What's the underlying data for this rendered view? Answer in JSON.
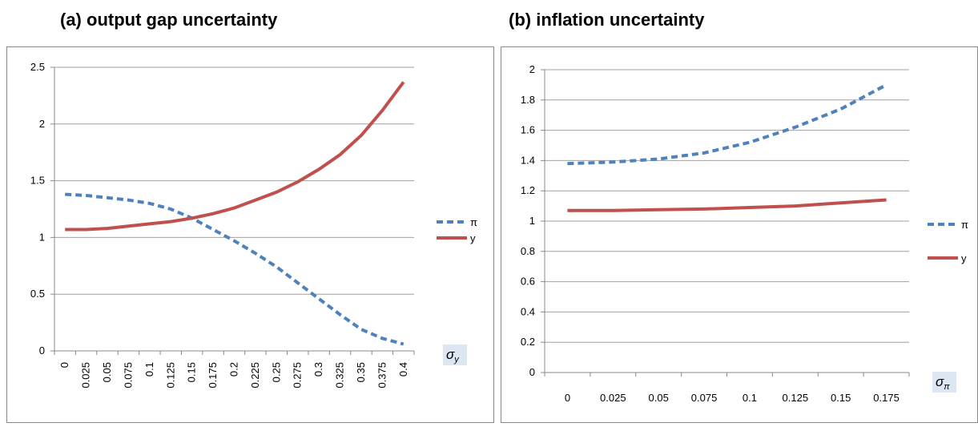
{
  "chart_data": [
    {
      "type": "line",
      "title": "(a) output gap uncertainty",
      "x_label": {
        "symbol": "σ",
        "subscript": "y"
      },
      "categories": [
        "0",
        "0.025",
        "0.05",
        "0.075",
        "0.1",
        "0.125",
        "0.15",
        "0.175",
        "0.2",
        "0.225",
        "0.25",
        "0.275",
        "0.3",
        "0.325",
        "0.35",
        "0.375",
        "0.4"
      ],
      "series": [
        {
          "name": "π",
          "color": "#4f81bd",
          "dash": true,
          "values": [
            1.38,
            1.37,
            1.35,
            1.33,
            1.3,
            1.25,
            1.17,
            1.07,
            0.97,
            0.86,
            0.74,
            0.6,
            0.46,
            0.32,
            0.19,
            0.11,
            0.06
          ]
        },
        {
          "name": "y",
          "color": "#c0504d",
          "dash": false,
          "values": [
            1.07,
            1.07,
            1.08,
            1.1,
            1.12,
            1.14,
            1.17,
            1.21,
            1.26,
            1.33,
            1.4,
            1.49,
            1.6,
            1.73,
            1.9,
            2.12,
            2.37
          ]
        }
      ],
      "ylim": [
        0,
        2.5
      ],
      "yticks": [
        0,
        0.5,
        1,
        1.5,
        2,
        2.5
      ],
      "grid": true,
      "legend": "right"
    },
    {
      "type": "line",
      "title": "(b) inflation uncertainty",
      "x_label": {
        "symbol": "σ",
        "subscript": "π"
      },
      "categories": [
        "0",
        "0.025",
        "0.05",
        "0.075",
        "0.1",
        "0.125",
        "0.15",
        "0.175"
      ],
      "series": [
        {
          "name": "π",
          "color": "#4f81bd",
          "dash": true,
          "values": [
            1.38,
            1.39,
            1.41,
            1.45,
            1.52,
            1.62,
            1.74,
            1.9
          ]
        },
        {
          "name": "y",
          "color": "#c0504d",
          "dash": false,
          "values": [
            1.07,
            1.07,
            1.075,
            1.08,
            1.09,
            1.1,
            1.12,
            1.14
          ]
        }
      ],
      "ylim": [
        0,
        2
      ],
      "yticks": [
        0,
        0.2,
        0.4,
        0.6,
        0.8,
        1,
        1.2,
        1.4,
        1.6,
        1.8,
        2
      ],
      "grid": true,
      "legend": "right"
    }
  ]
}
